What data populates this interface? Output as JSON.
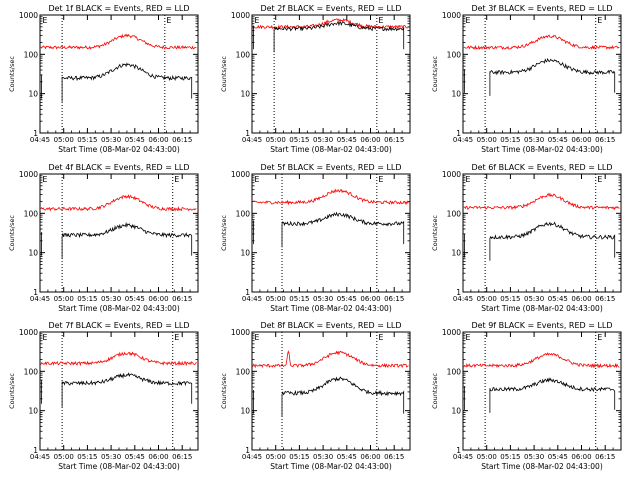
{
  "chart_data": {
    "type": "line",
    "scale": "log",
    "ylim": [
      1,
      1000
    ],
    "y_ticks": [
      1,
      10,
      100,
      1000
    ],
    "y_tick_labels": [
      "1",
      "10",
      "100",
      "1000"
    ],
    "x_range_minutes": [
      0,
      100
    ],
    "x_ticks_minutes": [
      0,
      15,
      30,
      45,
      60,
      75,
      90
    ],
    "x_tick_labels": [
      "04:45",
      "05:00",
      "05:15",
      "05:30",
      "05:45",
      "06:00",
      "06:15"
    ],
    "ylabel": "Counts/sec",
    "xlabel": "Start Time (08-Mar-02 04:43:00)",
    "series_colors": {
      "events": "#000000",
      "lld": "#ff0000"
    },
    "panels": [
      {
        "title": "Det 1f BLACK = Events, RED = LLD",
        "marker": "E",
        "vlines": [
          14,
          79
        ],
        "gap": [
          0,
          14
        ],
        "lld": {
          "base": 150,
          "bump": 300,
          "spike": null
        },
        "events": {
          "base": 25,
          "bump": 55,
          "start": 14,
          "end": 96
        }
      },
      {
        "title": "Det 2f BLACK = Events, RED = LLD",
        "marker": "E",
        "vlines": [
          14,
          79
        ],
        "gap": [
          0,
          14
        ],
        "lld": {
          "base": 500,
          "bump": 750,
          "spike": null
        },
        "events": {
          "base": 450,
          "bump": 620,
          "start": 14,
          "end": 96
        }
      },
      {
        "title": "Det 3f BLACK = Events, RED = LLD",
        "marker": "E",
        "vlines": [
          14,
          84
        ],
        "gap": [
          0,
          14
        ],
        "lld": {
          "base": 150,
          "bump": 290,
          "spike": null
        },
        "events": {
          "base": 35,
          "bump": 70,
          "start": 17,
          "end": 96
        }
      },
      {
        "title": "Det 4f BLACK = Events, RED = LLD",
        "marker": "E",
        "vlines": [
          14,
          84
        ],
        "gap": [
          0,
          14
        ],
        "lld": {
          "base": 130,
          "bump": 270,
          "spike": null
        },
        "events": {
          "base": 28,
          "bump": 50,
          "start": 14,
          "end": 96
        }
      },
      {
        "title": "Det 5f BLACK = Events, RED = LLD",
        "marker": "E",
        "vlines": [
          19,
          79
        ],
        "gap": [
          0,
          19
        ],
        "lld": {
          "base": 190,
          "bump": 380,
          "spike": null
        },
        "events": {
          "base": 55,
          "bump": 95,
          "start": 19,
          "end": 96
        }
      },
      {
        "title": "Det 6f BLACK = Events, RED = LLD",
        "marker": "E",
        "vlines": [
          14,
          84
        ],
        "gap": [
          0,
          14
        ],
        "lld": {
          "base": 140,
          "bump": 290,
          "spike": null
        },
        "events": {
          "base": 25,
          "bump": 55,
          "start": 17,
          "end": 96
        }
      },
      {
        "title": "Det 7f BLACK = Events, RED = LLD",
        "marker": "E",
        "vlines": [
          14,
          84
        ],
        "gap": [
          0,
          14
        ],
        "lld": {
          "base": 160,
          "bump": 290,
          "spike": null
        },
        "events": {
          "base": 50,
          "bump": 80,
          "start": 14,
          "end": 96
        }
      },
      {
        "title": "Det 8f BLACK = Events, RED = LLD",
        "marker": "E",
        "vlines": [
          19,
          79
        ],
        "gap": [
          0,
          19
        ],
        "lld": {
          "base": 140,
          "bump": 300,
          "spike": [
            23,
            350
          ]
        },
        "events": {
          "base": 28,
          "bump": 65,
          "start": 19,
          "end": 96
        }
      },
      {
        "title": "Det 9f BLACK = Events, RED = LLD",
        "marker": "E",
        "vlines": [
          14,
          84
        ],
        "gap": [
          0,
          14
        ],
        "lld": {
          "base": 140,
          "bump": 270,
          "spike": null
        },
        "events": {
          "base": 35,
          "bump": 60,
          "start": 17,
          "end": 96
        }
      }
    ]
  }
}
